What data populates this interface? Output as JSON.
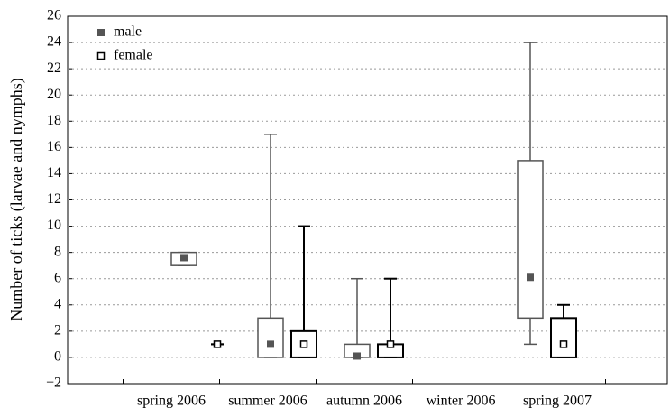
{
  "chart_data": {
    "type": "box",
    "ylabel": "Number of ticks (larvae and nymphs)",
    "categories": [
      "spring 2006",
      "summer 2006",
      "autumn 2006",
      "winter 2006",
      "spring 2007"
    ],
    "series": [
      {
        "name": "male",
        "color": "#555555",
        "values": [
          {
            "min": 7,
            "q1": 7,
            "median": 7.6,
            "q3": 8,
            "max": 8
          },
          {
            "min": 0,
            "q1": 0,
            "median": 1,
            "q3": 3,
            "max": 17
          },
          {
            "min": 0,
            "q1": 0,
            "median": 0.1,
            "q3": 1,
            "max": 6
          },
          null,
          {
            "min": 1,
            "q1": 3,
            "median": 6.1,
            "q3": 15,
            "max": 24
          }
        ]
      },
      {
        "name": "female",
        "color": "#000000",
        "values": [
          {
            "min": 1,
            "q1": 1,
            "median": 1,
            "q3": 1,
            "max": 1
          },
          {
            "min": 0,
            "q1": 0,
            "median": 1,
            "q3": 2,
            "max": 10
          },
          {
            "min": 0,
            "q1": 0,
            "median": 1,
            "q3": 1,
            "max": 6
          },
          null,
          {
            "min": 0,
            "q1": 0,
            "median": 1,
            "q3": 3,
            "max": 4
          }
        ]
      }
    ],
    "ylim": [
      -2,
      26
    ],
    "yticks": [
      {
        "value": -2,
        "label": "−2"
      },
      0,
      2,
      4,
      6,
      8,
      10,
      12,
      14,
      16,
      18,
      20,
      22,
      24,
      26
    ],
    "grid": true,
    "legend": "upper left"
  }
}
